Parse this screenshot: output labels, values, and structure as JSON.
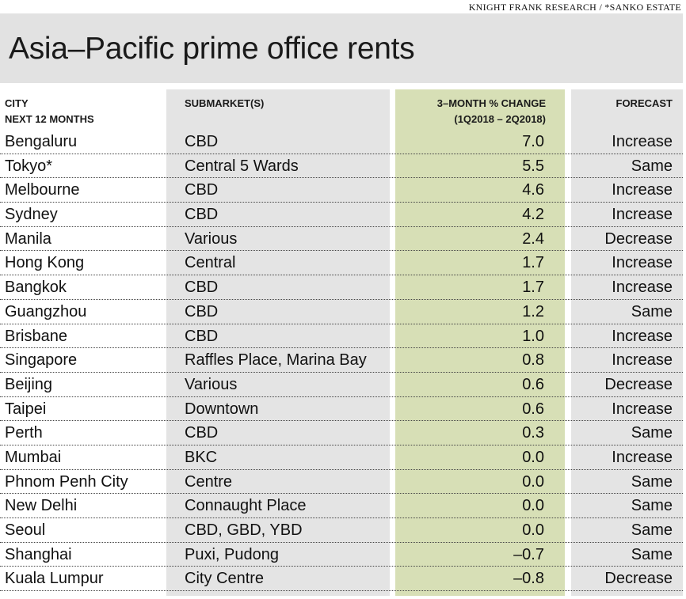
{
  "source": "KNIGHT FRANK RESEARCH / *SANKO ESTATE",
  "title": "Asia–Pacific prime office rents",
  "headers": {
    "city": [
      "CITY",
      "NEXT 12 MONTHS"
    ],
    "submarket": "SUBMARKET(S)",
    "change": [
      "3–MONTH % CHANGE",
      "(1Q2018 – 2Q2018)"
    ],
    "forecast": "FORECAST"
  },
  "colors": {
    "title_band": "#e2e2e2",
    "column_grey": "#e4e4e4",
    "change_column": "#d7dfb6"
  },
  "chart_data": {
    "type": "table",
    "title": "Asia–Pacific prime office rents",
    "columns": [
      "CITY NEXT 12 MONTHS",
      "SUBMARKET(S)",
      "3–MONTH % CHANGE (1Q2018 – 2Q2018)",
      "FORECAST"
    ],
    "rows": [
      {
        "city": "Bengaluru",
        "submarket": "CBD",
        "change": "7.0",
        "forecast": "Increase"
      },
      {
        "city": "Tokyo*",
        "submarket": "Central 5 Wards",
        "change": "5.5",
        "forecast": "Same"
      },
      {
        "city": "Melbourne",
        "submarket": "CBD",
        "change": "4.6",
        "forecast": "Increase"
      },
      {
        "city": "Sydney",
        "submarket": "CBD",
        "change": "4.2",
        "forecast": "Increase"
      },
      {
        "city": "Manila",
        "submarket": "Various",
        "change": "2.4",
        "forecast": "Decrease"
      },
      {
        "city": "Hong Kong",
        "submarket": "Central",
        "change": "1.7",
        "forecast": "Increase"
      },
      {
        "city": "Bangkok",
        "submarket": "CBD",
        "change": "1.7",
        "forecast": "Increase"
      },
      {
        "city": "Guangzhou",
        "submarket": "CBD",
        "change": "1.2",
        "forecast": "Same"
      },
      {
        "city": "Brisbane",
        "submarket": "CBD",
        "change": "1.0",
        "forecast": "Increase"
      },
      {
        "city": "Singapore",
        "submarket": "Raffles Place, Marina Bay",
        "change": "0.8",
        "forecast": "Increase"
      },
      {
        "city": "Beijing",
        "submarket": "Various",
        "change": "0.6",
        "forecast": "Decrease"
      },
      {
        "city": "Taipei",
        "submarket": "Downtown",
        "change": "0.6",
        "forecast": "Increase"
      },
      {
        "city": "Perth",
        "submarket": "CBD",
        "change": "0.3",
        "forecast": "Same"
      },
      {
        "city": "Mumbai",
        "submarket": "BKC",
        "change": "0.0",
        "forecast": "Increase"
      },
      {
        "city": "Phnom Penh City",
        "submarket": "Centre",
        "change": "0.0",
        "forecast": "Same"
      },
      {
        "city": "New Delhi",
        "submarket": "Connaught Place",
        "change": "0.0",
        "forecast": "Same"
      },
      {
        "city": "Seoul",
        "submarket": "CBD, GBD, YBD",
        "change": "0.0",
        "forecast": "Same"
      },
      {
        "city": "Shanghai",
        "submarket": "Puxi, Pudong",
        "change": "–0.7",
        "forecast": "Same"
      },
      {
        "city": "Kuala Lumpur",
        "submarket": "City Centre",
        "change": "–0.8",
        "forecast": "Decrease"
      }
    ]
  }
}
